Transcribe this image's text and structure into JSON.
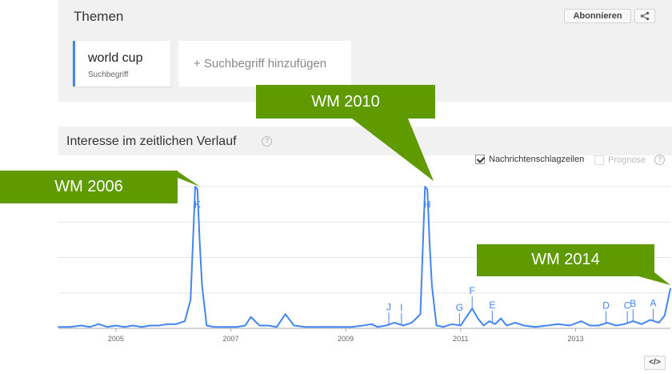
{
  "themen": {
    "title": "Themen",
    "subscribe_label": "Abonnieren",
    "term": {
      "name": "world cup",
      "type": "Suchbegriff"
    },
    "add_term_label": "+ Suchbegriff hinzufügen"
  },
  "interest": {
    "title": "Interesse im zeitlichen Verlauf",
    "help_label": "?",
    "news_label": "Nachrichtenschlagzeilen",
    "forecast_label": "Prognose",
    "forecast_help": "?",
    "embed_label": "</>"
  },
  "callouts": {
    "wm2006": "WM 2006",
    "wm2010": "WM 2010",
    "wm2014": "WM 2014"
  },
  "colors": {
    "series": "#4285f4",
    "callout": "#5e9a00",
    "accent": "#4285f4"
  },
  "chart_data": {
    "type": "line",
    "title": "",
    "xlabel": "",
    "ylabel": "",
    "x_tick_labels": [
      "2005",
      "2007",
      "2009",
      "2011",
      "2013"
    ],
    "x_ticks": [
      2005,
      2007,
      2009,
      2011,
      2013
    ],
    "xlim": [
      2004.0,
      2014.65
    ],
    "ylim": [
      0,
      100
    ],
    "grid": true,
    "series": [
      {
        "name": "",
        "x": [
          2004.0,
          2004.2,
          2004.4,
          2004.55,
          2004.7,
          2004.85,
          2005.0,
          2005.15,
          2005.3,
          2005.45,
          2005.6,
          2005.75,
          2005.9,
          2006.05,
          2006.2,
          2006.3,
          2006.38,
          2006.42,
          2006.46,
          2006.5,
          2006.58,
          2006.7,
          2006.9,
          2007.1,
          2007.25,
          2007.35,
          2007.5,
          2007.65,
          2007.8,
          2007.95,
          2008.1,
          2008.3,
          2008.5,
          2008.7,
          2008.9,
          2009.1,
          2009.3,
          2009.45,
          2009.55,
          2009.7,
          2009.85,
          2010.0,
          2010.15,
          2010.3,
          2010.38,
          2010.42,
          2010.46,
          2010.5,
          2010.58,
          2010.7,
          2010.85,
          2011.0,
          2011.1,
          2011.2,
          2011.3,
          2011.4,
          2011.5,
          2011.6,
          2011.7,
          2011.8,
          2011.95,
          2012.1,
          2012.3,
          2012.5,
          2012.7,
          2012.9,
          2013.1,
          2013.25,
          2013.4,
          2013.55,
          2013.7,
          2013.85,
          2014.0,
          2014.15,
          2014.3,
          2014.45,
          2014.55,
          2014.65
        ],
        "y": [
          1,
          1,
          2,
          1,
          3,
          1,
          2,
          1,
          2,
          1,
          2,
          2,
          3,
          3,
          5,
          20,
          100,
          98,
          60,
          30,
          2,
          1,
          1,
          1,
          2,
          8,
          2,
          2,
          1,
          10,
          2,
          1,
          1,
          1,
          1,
          1,
          2,
          3,
          1,
          2,
          4,
          2,
          4,
          10,
          100,
          98,
          60,
          30,
          2,
          1,
          3,
          2,
          8,
          14,
          7,
          2,
          5,
          3,
          7,
          2,
          4,
          2,
          1,
          2,
          3,
          2,
          5,
          2,
          2,
          4,
          2,
          3,
          5,
          3,
          6,
          4,
          9,
          28
        ]
      }
    ],
    "annotations": [
      {
        "label": "K",
        "x": 2006.42
      },
      {
        "label": "H",
        "x": 2010.42
      },
      {
        "label": "J",
        "x": 2009.75
      },
      {
        "label": "I",
        "x": 2009.97
      },
      {
        "label": "G",
        "x": 2010.98
      },
      {
        "label": "F",
        "x": 2011.2
      },
      {
        "label": "E",
        "x": 2011.55
      },
      {
        "label": "D",
        "x": 2013.53
      },
      {
        "label": "C",
        "x": 2013.9
      },
      {
        "label": "B",
        "x": 2014.0
      },
      {
        "label": "A",
        "x": 2014.35
      }
    ]
  }
}
